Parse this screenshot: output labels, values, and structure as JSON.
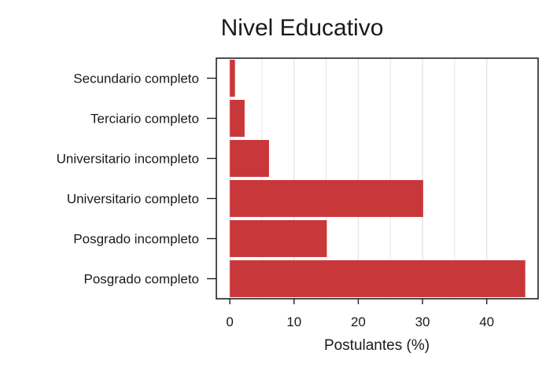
{
  "chart_data": {
    "type": "bar",
    "orientation": "horizontal",
    "title": "Nivel Educativo",
    "xlabel": "Postulantes (%)",
    "ylabel": "",
    "categories": [
      "Secundario completo",
      "Terciario completo",
      "Universitario incompleto",
      "Universitario completo",
      "Posgrado incompleto",
      "Posgrado completo"
    ],
    "values": [
      0.8,
      2.3,
      6.1,
      30.1,
      15.1,
      46.0
    ],
    "xticks": [
      "0",
      "10",
      "20",
      "30",
      "40"
    ],
    "xlim": [
      -2.1,
      48.0
    ],
    "grid": "vertical",
    "legend": "none",
    "colors": {
      "bar": "#c8373a",
      "grid": "#e6e6e6",
      "frame": "#222222"
    }
  }
}
